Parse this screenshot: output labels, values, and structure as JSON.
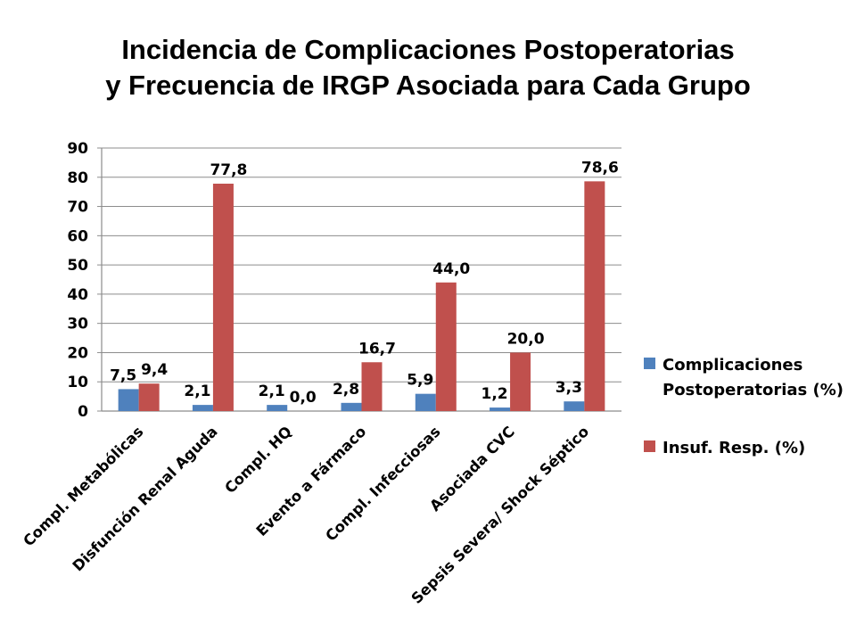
{
  "title": {
    "line1": "Incidencia de Complicaciones Postoperatorias",
    "line2": "y Frecuencia de IRGP Asociada para Cada Grupo"
  },
  "chart_data": {
    "type": "bar",
    "categories": [
      "Compl. Metabólicas",
      "Disfunción Renal Aguda",
      "Compl. HQ",
      "Evento a Fármaco",
      "Compl. Infecciosas",
      "Asociada CVC",
      "Sepsis Severa/ Shock Séptico"
    ],
    "series": [
      {
        "name": "Complicaciones Postoperatorias (%)",
        "color": "#4F81BD",
        "values": [
          7.5,
          2.1,
          2.1,
          2.8,
          5.9,
          1.2,
          3.3
        ],
        "labels": [
          "7,5",
          "2,1",
          "2,1",
          "2,8",
          "5,9",
          "1,2",
          "3,3"
        ]
      },
      {
        "name": "Insuf. Resp. (%)",
        "color": "#C0504D",
        "values": [
          9.4,
          77.8,
          0.0,
          16.7,
          44.0,
          20.0,
          78.6
        ],
        "labels": [
          "9,4",
          "77,8",
          "0,0",
          "16,7",
          "44,0",
          "20,0",
          "78,6"
        ]
      }
    ],
    "ylim": [
      0,
      90
    ],
    "yticks": [
      0,
      10,
      20,
      30,
      40,
      50,
      60,
      70,
      80,
      90
    ],
    "grid": true,
    "legend": "right"
  }
}
